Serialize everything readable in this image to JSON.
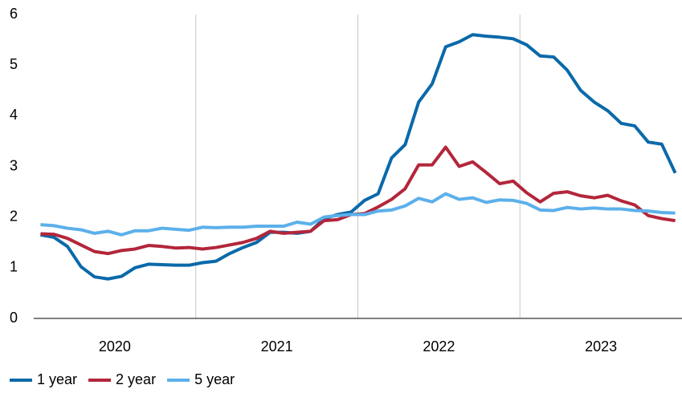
{
  "chart_data": {
    "type": "line",
    "categories": [
      "2020",
      null,
      null,
      null,
      null,
      null,
      null,
      null,
      null,
      null,
      null,
      null,
      "2021",
      null,
      null,
      null,
      null,
      null,
      null,
      null,
      null,
      null,
      null,
      null,
      "2022",
      null,
      null,
      null,
      null,
      null,
      null,
      null,
      null,
      null,
      null,
      null,
      "2023",
      null,
      null,
      null,
      null,
      null,
      null,
      null,
      null,
      null,
      null,
      null
    ],
    "series": [
      {
        "name": "1 year",
        "color": "#0a69a9",
        "values": [
          1.65,
          1.6,
          1.42,
          1.02,
          0.82,
          0.78,
          0.83,
          1.0,
          1.07,
          1.06,
          1.05,
          1.05,
          1.1,
          1.13,
          1.28,
          1.4,
          1.5,
          1.7,
          1.7,
          1.68,
          1.72,
          1.97,
          2.05,
          2.1,
          2.33,
          2.46,
          3.17,
          3.43,
          4.27,
          4.63,
          5.36,
          5.46,
          5.6,
          5.57,
          5.55,
          5.52,
          5.4,
          5.18,
          5.16,
          4.9,
          4.5,
          4.27,
          4.1,
          3.85,
          3.8,
          3.48,
          3.44,
          2.87
        ]
      },
      {
        "name": "2 year",
        "color": "#b3263b",
        "values": [
          1.67,
          1.66,
          1.58,
          1.45,
          1.32,
          1.28,
          1.34,
          1.37,
          1.44,
          1.42,
          1.39,
          1.4,
          1.37,
          1.4,
          1.45,
          1.5,
          1.58,
          1.72,
          1.68,
          1.7,
          1.72,
          1.93,
          1.95,
          2.05,
          2.07,
          2.2,
          2.35,
          2.56,
          3.03,
          3.03,
          3.38,
          3.0,
          3.09,
          2.88,
          2.66,
          2.71,
          2.48,
          2.3,
          2.47,
          2.5,
          2.42,
          2.38,
          2.43,
          2.32,
          2.24,
          2.03,
          1.97,
          1.93
        ]
      },
      {
        "name": "5 year",
        "color": "#5cb0ea",
        "values": [
          1.85,
          1.83,
          1.78,
          1.75,
          1.68,
          1.72,
          1.65,
          1.73,
          1.73,
          1.78,
          1.76,
          1.74,
          1.8,
          1.79,
          1.8,
          1.8,
          1.82,
          1.82,
          1.82,
          1.9,
          1.86,
          2.0,
          2.03,
          2.05,
          2.05,
          2.12,
          2.14,
          2.22,
          2.37,
          2.3,
          2.46,
          2.35,
          2.38,
          2.29,
          2.34,
          2.33,
          2.27,
          2.14,
          2.13,
          2.19,
          2.16,
          2.18,
          2.16,
          2.16,
          2.13,
          2.12,
          2.09,
          2.08
        ]
      }
    ],
    "ylim": [
      0,
      6
    ],
    "yticks": [
      0,
      1,
      2,
      3,
      4,
      5,
      6
    ],
    "grid": "x",
    "legend": "bottom-left"
  }
}
